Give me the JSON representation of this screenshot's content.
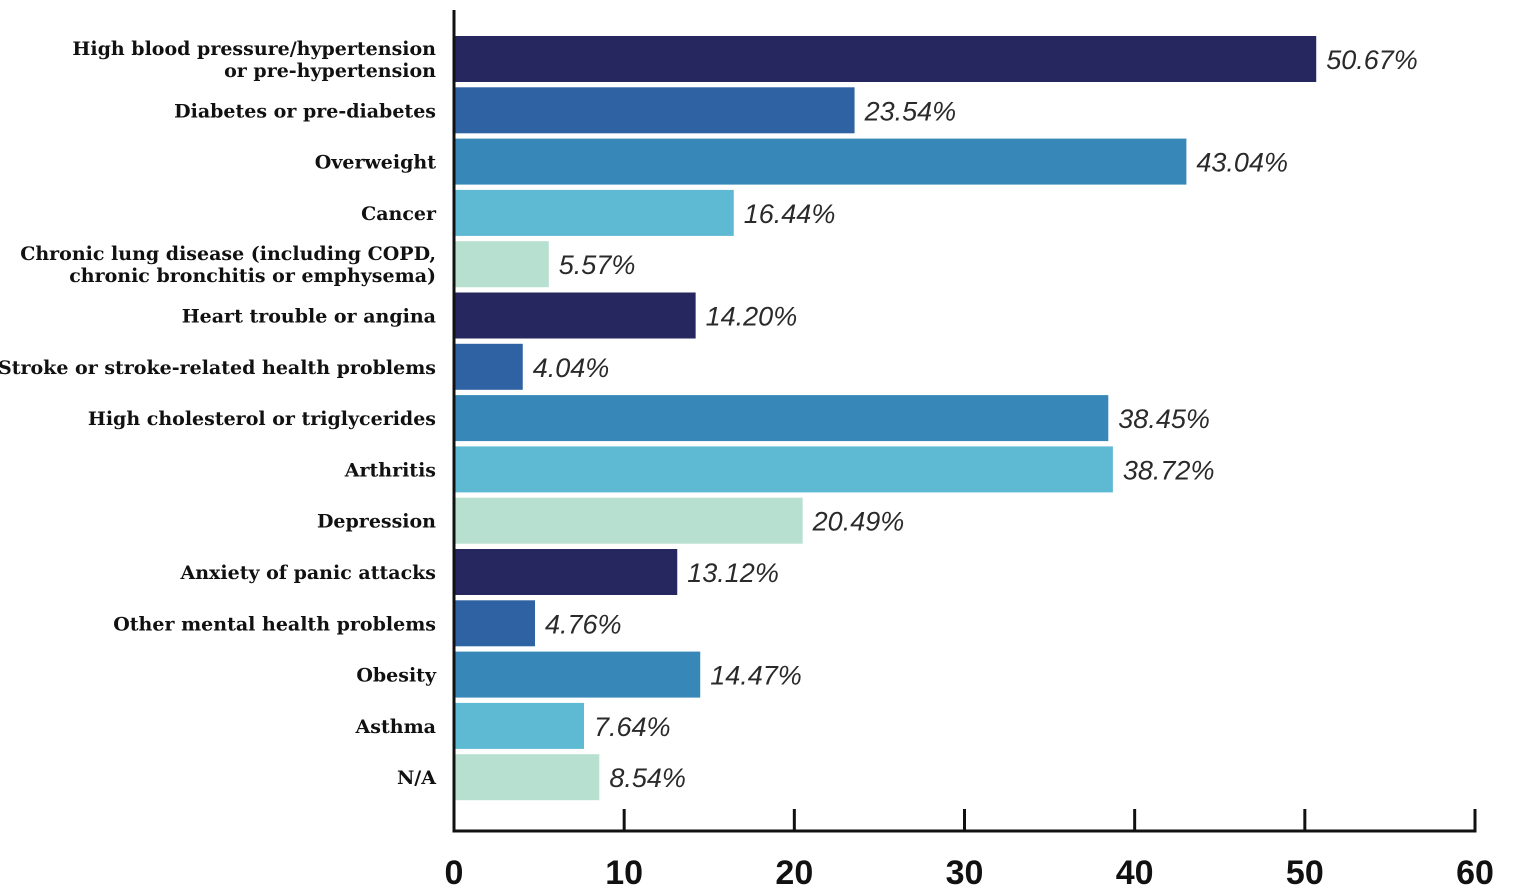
{
  "chart_data": {
    "type": "bar",
    "orientation": "horizontal",
    "title": "",
    "xlabel": "",
    "ylabel": "",
    "xlim": [
      0,
      60
    ],
    "xticks": [
      0,
      10,
      20,
      30,
      40,
      50,
      60
    ],
    "grid": false,
    "legend": "none",
    "categories": [
      [
        "High blood pressure/hypertension",
        "or pre-hypertension"
      ],
      [
        "Diabetes or pre-diabetes"
      ],
      [
        "Overweight"
      ],
      [
        "Cancer"
      ],
      [
        "Chronic lung disease (including COPD,",
        "chronic bronchitis or emphysema)"
      ],
      [
        "Heart trouble or angina"
      ],
      [
        "Stroke or stroke-related health problems"
      ],
      [
        "High cholesterol or triglycerides"
      ],
      [
        "Arthritis"
      ],
      [
        "Depression"
      ],
      [
        "Anxiety of panic attacks"
      ],
      [
        "Other mental health problems"
      ],
      [
        "Obesity"
      ],
      [
        "Asthma"
      ],
      [
        "N/A"
      ]
    ],
    "values": [
      50.67,
      23.54,
      43.04,
      16.44,
      5.57,
      14.2,
      4.04,
      38.45,
      38.72,
      20.49,
      13.12,
      4.76,
      14.47,
      7.64,
      8.54
    ],
    "value_labels": [
      "50.67%",
      "23.54%",
      "43.04%",
      "16.44%",
      "5.57%",
      "14.20%",
      "4.04%",
      "38.45%",
      "38.72%",
      "20.49%",
      "13.12%",
      "4.76%",
      "14.47%",
      "7.64%",
      "8.54%"
    ],
    "bar_colors": [
      "#272760",
      "#2f62a2",
      "#3788b8",
      "#5ebad3",
      "#b8e0d0"
    ]
  }
}
